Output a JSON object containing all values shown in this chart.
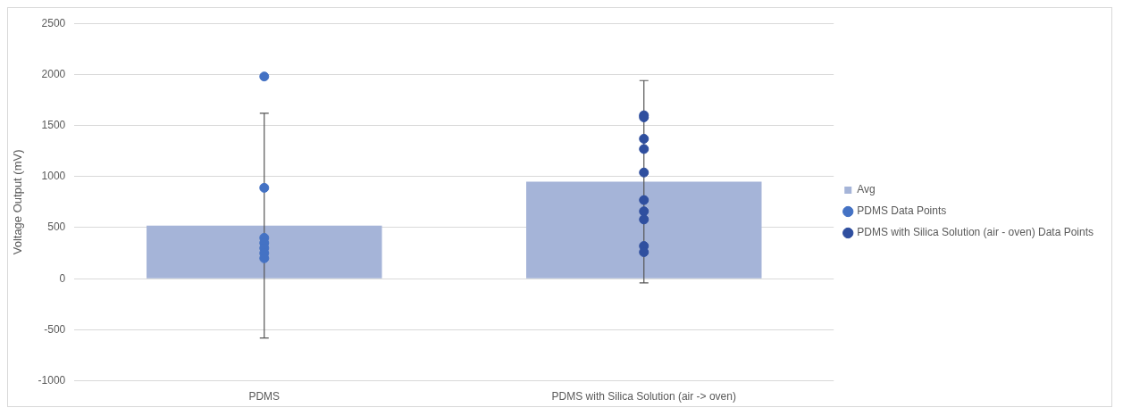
{
  "chart_data": {
    "type": "bar",
    "ylabel": "Voltage Output (mV)",
    "categories": [
      "PDMS",
      "PDMS with Silica Solution (air -> oven)"
    ],
    "ylim": [
      -1000,
      2500
    ],
    "yticks": [
      -1000,
      -500,
      0,
      500,
      1000,
      1500,
      2000,
      2500
    ],
    "grid": "y",
    "legend": "right",
    "marker": "circle",
    "series": [
      {
        "name": "Avg",
        "color": "#a5b4d8",
        "values": [
          520,
          950
        ],
        "errors": [
          1100,
          990
        ]
      },
      {
        "name": "PDMS Data Points",
        "type": "scatter",
        "color": "#4472c4",
        "x": [
          "PDMS",
          "PDMS",
          "PDMS",
          "PDMS",
          "PDMS",
          "PDMS",
          "PDMS"
        ],
        "values": [
          1980,
          890,
          400,
          350,
          300,
          250,
          200
        ]
      },
      {
        "name": "PDMS with Silica Solution (air - oven) Data Points",
        "type": "scatter",
        "color": "#2f4f9f",
        "x": [
          "PDMS with Silica Solution (air -> oven)",
          "PDMS with Silica Solution (air -> oven)",
          "PDMS with Silica Solution (air -> oven)",
          "PDMS with Silica Solution (air -> oven)",
          "PDMS with Silica Solution (air -> oven)",
          "PDMS with Silica Solution (air -> oven)",
          "PDMS with Silica Solution (air -> oven)",
          "PDMS with Silica Solution (air -> oven)",
          "PDMS with Silica Solution (air -> oven)",
          "PDMS with Silica Solution (air -> oven)"
        ],
        "values": [
          1600,
          1580,
          1370,
          1270,
          1040,
          770,
          660,
          580,
          320,
          260
        ]
      }
    ]
  }
}
